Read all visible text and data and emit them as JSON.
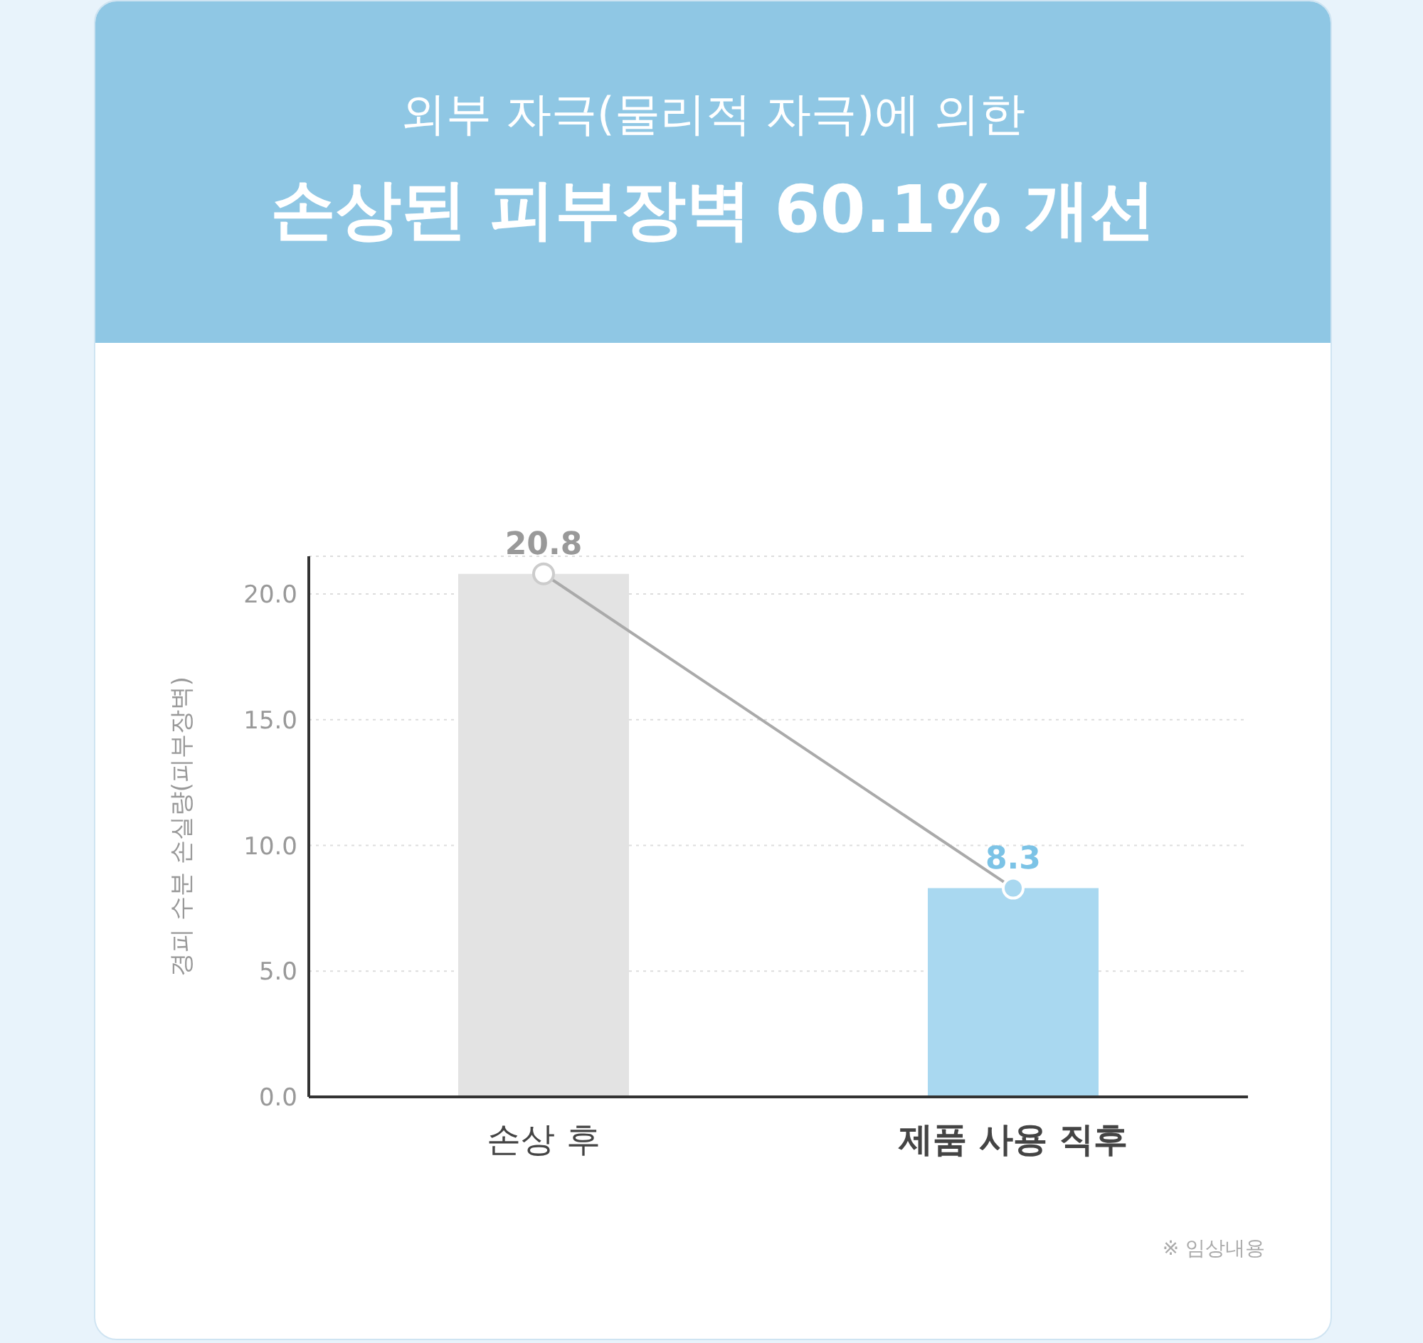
{
  "chart_data": {
    "type": "bar",
    "title": "외부 자극(물리적 자극)에 의한",
    "subtitle": "손상된 피부장벽 60.1% 개선",
    "ylabel": "경피 수분 손실량(피부장벽)",
    "categories": [
      "손상 후",
      "제품 사용 직후"
    ],
    "series": [
      {
        "colors": [
          "#e3e3e3",
          "#a9d8f0"
        ],
        "values": [
          20.8,
          8.3
        ]
      },
      {
        "type": "line",
        "color": "#aaaaaa",
        "values": [
          20.8,
          8.3
        ],
        "value_labels": [
          "20.8",
          "8.3"
        ]
      }
    ],
    "ylim": [
      0,
      21.5
    ],
    "yticks": [
      {
        "value": 0,
        "label": "0.0"
      },
      {
        "value": 5,
        "label": "5.0"
      },
      {
        "value": 10,
        "label": "10.0"
      },
      {
        "value": 15,
        "label": "15.0"
      },
      {
        "value": 20,
        "label": "20.0"
      }
    ],
    "grid": "y",
    "marker": "circle",
    "line_style": "solid",
    "annotations": [
      "※ 임상내용"
    ]
  }
}
